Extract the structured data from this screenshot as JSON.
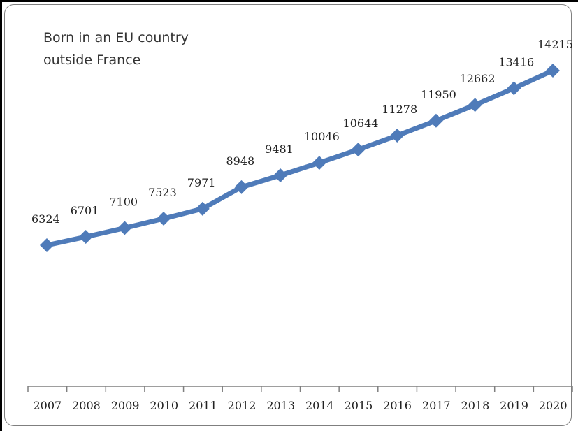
{
  "chart_data": {
    "type": "line",
    "title": "Born in an EU country outside France",
    "title_lines": [
      "Born in an EU country",
      "outside France"
    ],
    "xlabel": "",
    "ylabel": "",
    "categories": [
      "2007",
      "2008",
      "2009",
      "2010",
      "2011",
      "2012",
      "2013",
      "2014",
      "2015",
      "2016",
      "2017",
      "2018",
      "2019",
      "2020"
    ],
    "series": [
      {
        "values": [
          6324,
          6701,
          7100,
          7523,
          7971,
          8948,
          9481,
          10046,
          10644,
          11278,
          11950,
          12662,
          13416,
          14215
        ],
        "color": "#4f7bb9",
        "marker": "diamond"
      }
    ],
    "data_labels": [
      "6324",
      "6701",
      "7100",
      "7523",
      "7971",
      "8948",
      "9481",
      "10046",
      "10644",
      "11278",
      "11950",
      "12662",
      "13416",
      "14215"
    ],
    "ylim": [
      0,
      16000
    ],
    "grid": false,
    "legend": "none"
  }
}
